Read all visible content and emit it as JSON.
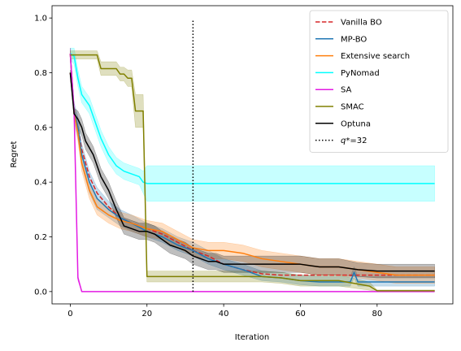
{
  "chart_data": {
    "type": "line",
    "xlabel": "Iteration",
    "ylabel": "Regret",
    "xlim": [
      -4.75,
      99.75
    ],
    "ylim": [
      -0.045,
      1.045
    ],
    "xticks": [
      0,
      20,
      40,
      60,
      80
    ],
    "yticks": [
      0.0,
      0.2,
      0.4,
      0.6,
      0.8,
      1.0
    ],
    "xtick_labels": [
      "0",
      "20",
      "40",
      "60",
      "80"
    ],
    "ytick_labels": [
      "0.0",
      "0.2",
      "0.4",
      "0.6",
      "0.8",
      "1.0"
    ],
    "legend_position": "upper right",
    "grid": false,
    "vline": {
      "x": 32,
      "label": "$q*$=32",
      "label_display": "q*=32",
      "style": "dotted",
      "color": "#000000"
    },
    "series": [
      {
        "name": "Vanilla BO",
        "color": "#d62728",
        "style": "dashed",
        "x": [
          0,
          1,
          2,
          3,
          5,
          7,
          10,
          13,
          16,
          20,
          24,
          28,
          32,
          36,
          40,
          45,
          50,
          55,
          60,
          65,
          70,
          75,
          80,
          85,
          90,
          95
        ],
        "y": [
          0.8,
          0.66,
          0.6,
          0.52,
          0.42,
          0.36,
          0.31,
          0.27,
          0.25,
          0.23,
          0.21,
          0.18,
          0.15,
          0.13,
          0.1,
          0.08,
          0.065,
          0.06,
          0.06,
          0.06,
          0.06,
          0.06,
          0.06,
          0.06,
          0.06,
          0.06
        ]
      },
      {
        "name": "MP-BO",
        "color": "#1f77b4",
        "style": "solid",
        "x": [
          0,
          1,
          2,
          3,
          5,
          7,
          10,
          13,
          16,
          20,
          24,
          28,
          32,
          36,
          40,
          45,
          50,
          55,
          60,
          65,
          70,
          73,
          74,
          75,
          80,
          85,
          90,
          95
        ],
        "y": [
          0.87,
          0.66,
          0.6,
          0.5,
          0.4,
          0.34,
          0.3,
          0.27,
          0.25,
          0.22,
          0.2,
          0.17,
          0.15,
          0.12,
          0.1,
          0.08,
          0.055,
          0.05,
          0.04,
          0.035,
          0.035,
          0.035,
          0.07,
          0.035,
          0.035,
          0.035,
          0.035,
          0.035
        ],
        "band_lower": [
          0.86,
          0.63,
          0.56,
          0.46,
          0.36,
          0.3,
          0.27,
          0.24,
          0.22,
          0.2,
          0.18,
          0.15,
          0.13,
          0.1,
          0.08,
          0.06,
          0.04,
          0.035,
          0.025,
          0.02,
          0.02,
          0.02,
          0.05,
          0.02,
          0.02,
          0.02,
          0.02,
          0.02
        ],
        "band_upper": [
          0.89,
          0.69,
          0.64,
          0.54,
          0.44,
          0.38,
          0.33,
          0.3,
          0.28,
          0.25,
          0.23,
          0.2,
          0.18,
          0.15,
          0.12,
          0.1,
          0.075,
          0.07,
          0.06,
          0.055,
          0.055,
          0.055,
          0.09,
          0.055,
          0.055,
          0.055,
          0.055,
          0.055
        ]
      },
      {
        "name": "Extensive search",
        "color": "#ff7f0e",
        "style": "solid",
        "x": [
          0,
          1,
          2,
          3,
          5,
          7,
          10,
          13,
          16,
          20,
          24,
          28,
          32,
          36,
          40,
          45,
          50,
          55,
          60,
          65,
          70,
          75,
          80,
          85,
          90,
          95
        ],
        "y": [
          0.87,
          0.65,
          0.58,
          0.47,
          0.37,
          0.31,
          0.28,
          0.26,
          0.25,
          0.23,
          0.22,
          0.19,
          0.16,
          0.15,
          0.15,
          0.14,
          0.12,
          0.11,
          0.1,
          0.09,
          0.09,
          0.08,
          0.07,
          0.06,
          0.06,
          0.06
        ],
        "band_lower": [
          0.86,
          0.62,
          0.55,
          0.44,
          0.34,
          0.28,
          0.25,
          0.23,
          0.22,
          0.2,
          0.19,
          0.16,
          0.13,
          0.12,
          0.12,
          0.11,
          0.09,
          0.08,
          0.07,
          0.06,
          0.06,
          0.05,
          0.04,
          0.03,
          0.03,
          0.03
        ],
        "band_upper": [
          0.89,
          0.68,
          0.61,
          0.5,
          0.4,
          0.34,
          0.31,
          0.29,
          0.28,
          0.26,
          0.25,
          0.22,
          0.19,
          0.18,
          0.18,
          0.17,
          0.15,
          0.14,
          0.13,
          0.12,
          0.12,
          0.11,
          0.1,
          0.09,
          0.09,
          0.09
        ]
      },
      {
        "name": "PyNomad",
        "color": "#00ffff",
        "style": "solid",
        "x": [
          0,
          1,
          2,
          3,
          4,
          5,
          6,
          8,
          10,
          12,
          14,
          16,
          18,
          19,
          20,
          25,
          30,
          40,
          50,
          60,
          70,
          80,
          90,
          95
        ],
        "y": [
          0.87,
          0.86,
          0.78,
          0.72,
          0.7,
          0.68,
          0.64,
          0.56,
          0.5,
          0.46,
          0.44,
          0.43,
          0.42,
          0.4,
          0.395,
          0.395,
          0.395,
          0.395,
          0.395,
          0.395,
          0.395,
          0.395,
          0.395,
          0.395
        ],
        "band_lower": [
          0.85,
          0.83,
          0.75,
          0.69,
          0.67,
          0.65,
          0.61,
          0.53,
          0.47,
          0.43,
          0.41,
          0.4,
          0.39,
          0.36,
          0.33,
          0.33,
          0.33,
          0.33,
          0.33,
          0.33,
          0.33,
          0.33,
          0.33,
          0.33
        ],
        "band_upper": [
          0.89,
          0.89,
          0.81,
          0.75,
          0.73,
          0.71,
          0.67,
          0.59,
          0.53,
          0.49,
          0.47,
          0.46,
          0.45,
          0.44,
          0.46,
          0.46,
          0.46,
          0.46,
          0.46,
          0.46,
          0.46,
          0.46,
          0.46,
          0.46
        ]
      },
      {
        "name": "SA",
        "color": "#e31ae3",
        "style": "solid",
        "x": [
          0,
          1,
          2,
          3,
          5,
          20,
          40,
          60,
          80,
          95
        ],
        "y": [
          0.87,
          0.66,
          0.05,
          0.0,
          0.0,
          0.0,
          0.0,
          0.0,
          0.0,
          0.0
        ],
        "band_lower": [
          0.86,
          0.64,
          0.04,
          0.0,
          0.0,
          0.0,
          0.0,
          0.0,
          0.0,
          0.0
        ],
        "band_upper": [
          0.89,
          0.68,
          0.06,
          0.0,
          0.0,
          0.0,
          0.0,
          0.0,
          0.0,
          0.0
        ]
      },
      {
        "name": "SMAC",
        "color": "#808000",
        "style": "solid",
        "x": [
          0,
          7,
          8,
          12,
          13,
          14,
          15,
          16,
          17,
          19,
          20,
          30,
          40,
          50,
          55,
          60,
          70,
          78,
          80,
          95
        ],
        "y": [
          0.865,
          0.865,
          0.815,
          0.815,
          0.795,
          0.795,
          0.78,
          0.78,
          0.66,
          0.66,
          0.055,
          0.055,
          0.055,
          0.055,
          0.05,
          0.04,
          0.04,
          0.02,
          0.003,
          0.003
        ],
        "band_lower": [
          0.85,
          0.85,
          0.79,
          0.79,
          0.77,
          0.77,
          0.75,
          0.75,
          0.6,
          0.6,
          0.035,
          0.035,
          0.035,
          0.035,
          0.03,
          0.02,
          0.02,
          0.005,
          0.0,
          0.0
        ],
        "band_upper": [
          0.88,
          0.88,
          0.84,
          0.84,
          0.82,
          0.82,
          0.81,
          0.81,
          0.72,
          0.72,
          0.075,
          0.075,
          0.075,
          0.075,
          0.07,
          0.06,
          0.06,
          0.035,
          0.006,
          0.006
        ]
      },
      {
        "name": "Optuna",
        "color": "#000000",
        "style": "solid",
        "x": [
          0,
          1,
          2,
          3,
          4,
          6,
          8,
          10,
          12,
          14,
          16,
          18,
          20,
          22,
          24,
          26,
          28,
          30,
          32,
          34,
          36,
          38,
          40,
          45,
          50,
          55,
          60,
          65,
          70,
          75,
          80,
          85,
          90,
          95
        ],
        "y": [
          0.8,
          0.65,
          0.63,
          0.6,
          0.55,
          0.5,
          0.42,
          0.37,
          0.3,
          0.24,
          0.23,
          0.22,
          0.22,
          0.21,
          0.19,
          0.17,
          0.16,
          0.15,
          0.13,
          0.12,
          0.11,
          0.11,
          0.1,
          0.1,
          0.1,
          0.1,
          0.1,
          0.09,
          0.09,
          0.08,
          0.075,
          0.075,
          0.075,
          0.075
        ],
        "band_lower": [
          0.79,
          0.63,
          0.6,
          0.57,
          0.52,
          0.47,
          0.39,
          0.34,
          0.27,
          0.21,
          0.2,
          0.19,
          0.19,
          0.18,
          0.16,
          0.14,
          0.13,
          0.12,
          0.1,
          0.09,
          0.08,
          0.08,
          0.07,
          0.07,
          0.07,
          0.07,
          0.07,
          0.06,
          0.06,
          0.055,
          0.05,
          0.05,
          0.05,
          0.05
        ],
        "band_upper": [
          0.81,
          0.67,
          0.66,
          0.63,
          0.58,
          0.53,
          0.45,
          0.4,
          0.33,
          0.27,
          0.26,
          0.25,
          0.25,
          0.24,
          0.22,
          0.2,
          0.19,
          0.18,
          0.16,
          0.15,
          0.14,
          0.14,
          0.13,
          0.13,
          0.13,
          0.13,
          0.13,
          0.12,
          0.12,
          0.105,
          0.1,
          0.1,
          0.1,
          0.1
        ]
      }
    ]
  }
}
